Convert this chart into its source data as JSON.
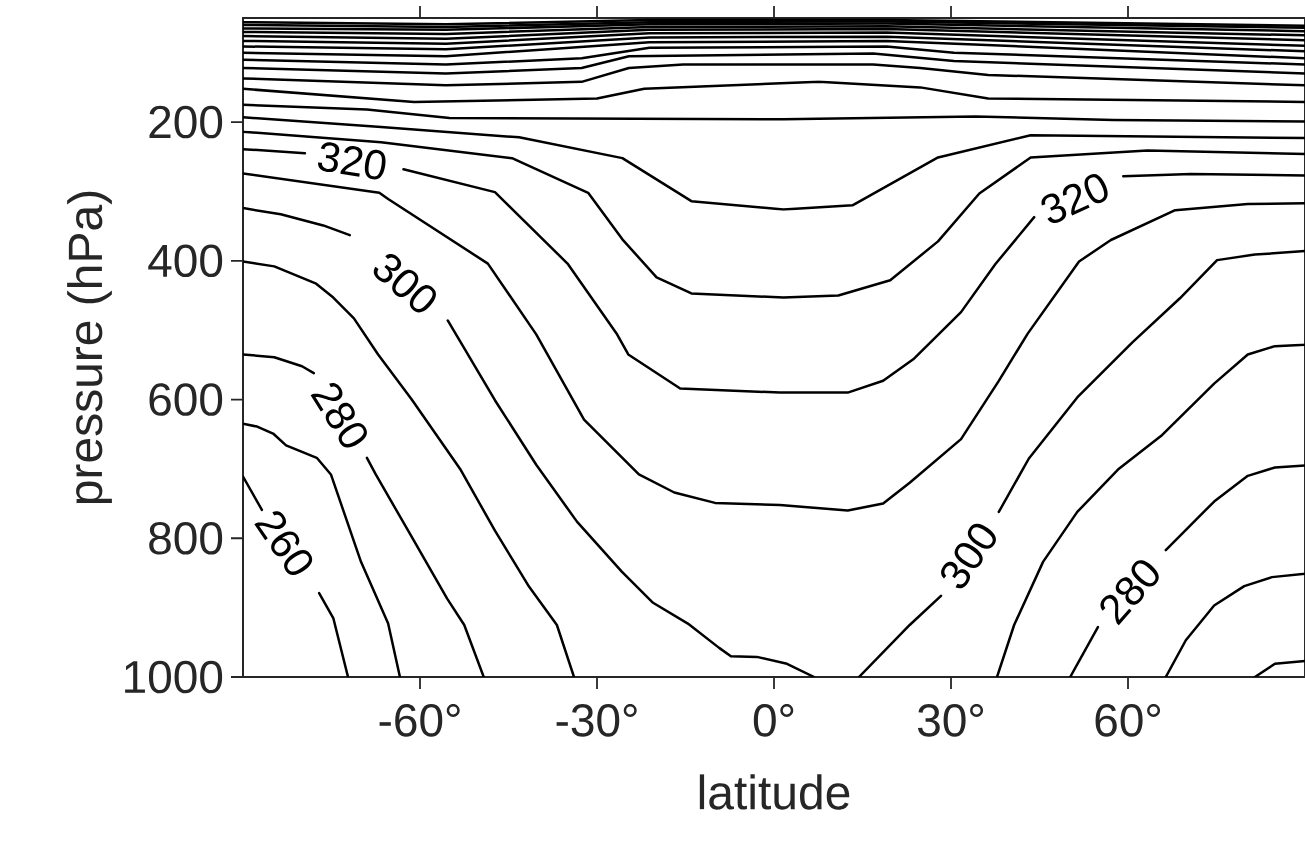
{
  "chart_data": {
    "type": "line",
    "xlabel": "latitude",
    "ylabel": "pressure (hPa)",
    "xlim": [
      -90,
      90
    ],
    "ylim": [
      1000,
      50
    ],
    "xticks": [
      {
        "value": -60,
        "label": "-60°"
      },
      {
        "value": -30,
        "label": "-30°"
      },
      {
        "value": 0,
        "label": "0°"
      },
      {
        "value": 30,
        "label": "30°"
      },
      {
        "value": 60,
        "label": "60°"
      }
    ],
    "yticks": [
      200,
      400,
      600,
      800,
      1000
    ],
    "series": [
      {
        "name": "260",
        "color": "#000000",
        "x": [
          -90,
          -86.8,
          -82.9,
          -77.1,
          -74.7,
          -72.2
        ],
        "values": [
          711,
          759,
          null,
          879,
          915,
          1000
        ]
      },
      {
        "color": "#000000",
        "x": [
          -90,
          -87.6,
          -84.9,
          -82.7,
          -77.5,
          -75.1,
          -70,
          -65.4,
          -63.4
        ],
        "values": [
          635,
          639,
          649,
          666,
          684,
          708,
          834,
          923,
          1000
        ]
      },
      {
        "name": "280",
        "color": "#000000",
        "x": [
          -90,
          -84.7,
          -80,
          -78,
          -73.5,
          -69,
          -67.5,
          -61.4,
          -55.4,
          -52.5,
          -49.2
        ],
        "values": [
          535,
          539,
          552,
          562,
          null,
          684,
          708,
          798,
          887,
          925,
          1000
        ]
      },
      {
        "color": "#000000",
        "x": [
          -90,
          -84.7,
          -77.6,
          -74.7,
          -71.2,
          -67.1,
          -61.4,
          -53.2,
          -47.3,
          -41.5,
          -36.8,
          -33.9
        ],
        "values": [
          401,
          408,
          433,
          453,
          483,
          535,
          600,
          700,
          789,
          870,
          925,
          1000
        ]
      },
      {
        "name": "300",
        "color": "#000000",
        "x": [
          -90,
          -83.6,
          -76.4,
          -71.9,
          -62.5,
          -55.3,
          -47.3,
          -40.3,
          -33.4,
          -25.8,
          -20.5,
          -14.6,
          -9.3,
          -7.3,
          -2.9,
          2.2,
          6.8
        ],
        "values": [
          324,
          333,
          349,
          363,
          null,
          486,
          601,
          694,
          776,
          848,
          893,
          923,
          958,
          970,
          971,
          981,
          1000
        ]
      },
      {
        "name": "300",
        "color": "#000000",
        "x": [
          14.4,
          23,
          28.3,
          33,
          38.1,
          43.2,
          51.4,
          60.7,
          68.8,
          75.1,
          81.5,
          90
        ],
        "values": [
          1000,
          925,
          883,
          null,
          762,
          685,
          597,
          518,
          454,
          399,
          391,
          386
        ]
      },
      {
        "color": "#000000",
        "x": [
          37.8,
          40.7,
          45.6,
          51.4,
          58.3,
          65.8,
          74.6,
          80.3,
          84.9,
          90
        ],
        "values": [
          1000,
          925,
          834,
          762,
          701,
          651,
          577,
          535,
          523,
          521
        ]
      },
      {
        "name": "280",
        "color": "#000000",
        "x": [
          50.2,
          54.9,
          60.3,
          66.4,
          74.6,
          80.3,
          84.9,
          90
        ],
        "values": [
          1000,
          928,
          null,
          817,
          747,
          710,
          698,
          695
        ]
      },
      {
        "color": "#000000",
        "x": [
          66.4,
          69.8,
          74.6,
          79.7,
          84.4,
          90
        ],
        "values": [
          1000,
          947,
          897,
          869,
          856,
          851
        ]
      },
      {
        "color": "#000000",
        "x": [
          81.5,
          84.9,
          90
        ],
        "values": [
          1000,
          981,
          977
        ]
      },
      {
        "color": "#000000",
        "x": [
          -90,
          -66.9,
          -65.4,
          -48.5,
          -40.3,
          -32.2,
          -22.9,
          -16.9,
          -10,
          1,
          12.5,
          18.5,
          23,
          31.7,
          38.1,
          43,
          51.7,
          57.1,
          68,
          80.3,
          90
        ],
        "values": [
          274,
          302,
          311,
          404,
          506,
          629,
          708,
          734,
          749,
          752,
          760,
          750,
          720,
          657,
          573,
          505,
          401,
          370,
          327,
          318,
          317
        ]
      },
      {
        "name": "320",
        "color": "#000000",
        "x": [
          -90,
          -79.5,
          -71.5,
          -62.8,
          -47.3,
          -35,
          -26.6,
          -24.7,
          -15.9,
          1,
          12.5,
          18.5,
          23.6,
          31.7,
          37.5,
          44.1,
          51,
          59.2,
          70.7,
          90
        ],
        "values": [
          239,
          245,
          null,
          268,
          301,
          404,
          506,
          535,
          584,
          590,
          590,
          573,
          542,
          474,
          405,
          337,
          null,
          278,
          275,
          277
        ]
      },
      {
        "color": "#000000",
        "x": [
          -90,
          -66.6,
          -44.4,
          -31.5,
          -25.7,
          -19.9,
          -14,
          1.6,
          10.9,
          19.7,
          27.8,
          34.8,
          43.5,
          63.3,
          90
        ],
        "values": [
          214,
          229,
          252,
          302,
          369,
          424,
          447,
          453,
          450,
          428,
          372,
          303,
          251,
          241,
          246
        ]
      },
      {
        "color": "#000000",
        "x": [
          -90,
          -66.6,
          -43.2,
          -25.7,
          -14,
          1.6,
          13.3,
          27.8,
          43.5,
          90
        ],
        "values": [
          193,
          207,
          222,
          252,
          314,
          326,
          320,
          251,
          219,
          223
        ]
      },
      {
        "color": "#000000",
        "x": [
          -90,
          -69,
          -55,
          1.6,
          34.2,
          57.5,
          90
        ],
        "values": [
          175,
          182,
          194,
          196,
          192,
          197,
          199
        ]
      },
      {
        "color": "#000000",
        "x": [
          -90,
          -61,
          -30,
          -22,
          7.6,
          24.8,
          36.3,
          90
        ],
        "values": [
          152,
          171,
          166,
          152,
          142,
          150,
          166,
          171
        ]
      },
      {
        "color": "#000000",
        "x": [
          -90,
          -55.6,
          -32.6,
          -24.6,
          -15.4,
          16.8,
          24.8,
          36.3,
          90
        ],
        "values": [
          137,
          147,
          142,
          122,
          117,
          117,
          122,
          132,
          147
        ]
      },
      {
        "color": "#000000",
        "x": [
          -90,
          -55.6,
          -32.6,
          -24.6,
          16.8,
          30.5,
          90
        ],
        "values": [
          122,
          130,
          122,
          105,
          101,
          112,
          130
        ]
      },
      {
        "color": "#000000",
        "x": [
          -90,
          -55.6,
          -32.6,
          -21.1,
          19.1,
          30.5,
          90
        ],
        "values": [
          110,
          117,
          108,
          93,
          91,
          100,
          117
        ]
      },
      {
        "color": "#000000",
        "x": [
          -90,
          -55.6,
          -21.1,
          19.1,
          90
        ],
        "values": [
          100,
          105,
          85,
          83,
          108
        ]
      },
      {
        "color": "#000000",
        "x": [
          -90,
          -55.6,
          -21.1,
          19.1,
          90
        ],
        "values": [
          91,
          95,
          78,
          77,
          98
        ]
      },
      {
        "color": "#000000",
        "x": [
          -90,
          -55.6,
          -21.1,
          19.1,
          90
        ],
        "values": [
          83,
          87,
          72,
          71,
          90
        ]
      },
      {
        "color": "#000000",
        "x": [
          -90,
          -55.6,
          -21.1,
          19.1,
          90
        ],
        "values": [
          76,
          80,
          67,
          66,
          82
        ]
      },
      {
        "color": "#000000",
        "x": [
          -90,
          -55.6,
          -21.1,
          19.1,
          90
        ],
        "values": [
          70,
          73,
          63,
          62,
          75
        ]
      },
      {
        "color": "#000000",
        "x": [
          -90,
          -55.6,
          -21.1,
          19.1,
          90
        ],
        "values": [
          65,
          67,
          59,
          58,
          69
        ]
      },
      {
        "color": "#000000",
        "x": [
          -90,
          -55.6,
          -21.1,
          19.1,
          90
        ],
        "values": [
          60,
          63,
          56,
          55,
          64
        ]
      },
      {
        "color": "#000000",
        "x": [
          -90,
          -55.6,
          -21.1,
          19.1,
          90
        ],
        "values": [
          56,
          59,
          53,
          53,
          61
        ]
      }
    ]
  }
}
